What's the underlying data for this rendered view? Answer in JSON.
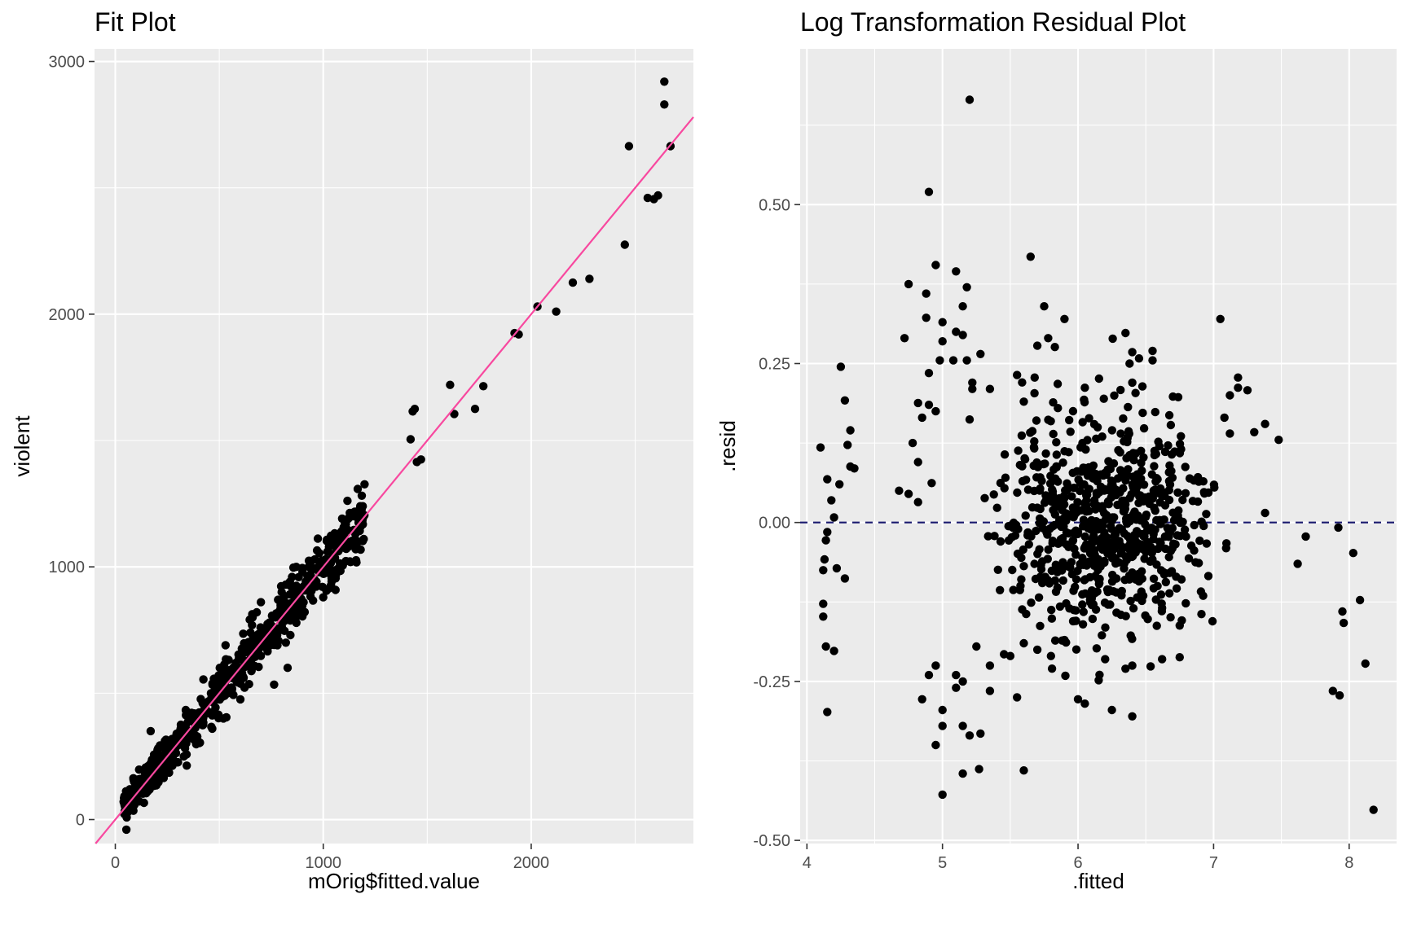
{
  "chart_data": [
    {
      "type": "scatter",
      "title": "Fit Plot",
      "xlabel": "mOrig$fitted.value",
      "ylabel": "violent",
      "xlim": [
        -100,
        2780
      ],
      "ylim": [
        -95,
        3050
      ],
      "x_ticks": [
        0,
        1000,
        2000
      ],
      "y_ticks": [
        0,
        1000,
        2000,
        3000
      ],
      "x_tick_labels": [
        "0",
        "1000",
        "2000"
      ],
      "y_tick_labels": [
        "0",
        "1000",
        "2000",
        "3000"
      ],
      "point_color": "#000000",
      "reference_line": {
        "kind": "identity",
        "slope": 1,
        "intercept": 0,
        "color": "#f8489f"
      },
      "points": [
        [
          2640,
          2920
        ],
        [
          2640,
          2830
        ],
        [
          2470,
          2665
        ],
        [
          2670,
          2665
        ],
        [
          2560,
          2460
        ],
        [
          2590,
          2455
        ],
        [
          2610,
          2470
        ],
        [
          2450,
          2275
        ],
        [
          2280,
          2140
        ],
        [
          2200,
          2125
        ],
        [
          2120,
          2010
        ],
        [
          2030,
          2030
        ],
        [
          1940,
          1920
        ],
        [
          1920,
          1925
        ],
        [
          1770,
          1715
        ],
        [
          1610,
          1720
        ],
        [
          1730,
          1625
        ],
        [
          1630,
          1605
        ],
        [
          1430,
          1615
        ],
        [
          1440,
          1625
        ],
        [
          1420,
          1505
        ],
        [
          1470,
          1425
        ],
        [
          1450,
          1415
        ],
        [
          1190,
          1240
        ],
        [
          1170,
          1175
        ],
        [
          1150,
          1210
        ],
        [
          1120,
          1190
        ],
        [
          1180,
          1160
        ],
        [
          1150,
          1145
        ],
        [
          1100,
          1100
        ],
        [
          1060,
          1080
        ],
        [
          1040,
          1120
        ],
        [
          1020,
          1060
        ],
        [
          1000,
          1010
        ],
        [
          970,
          1065
        ],
        [
          960,
          1030
        ],
        [
          930,
          1000
        ],
        [
          900,
          980
        ],
        [
          870,
          1000
        ],
        [
          850,
          960
        ],
        [
          820,
          930
        ],
        [
          800,
          900
        ],
        [
          800,
          820
        ],
        [
          770,
          800
        ],
        [
          750,
          760
        ],
        [
          820,
          700
        ],
        [
          700,
          860
        ],
        [
          680,
          820
        ],
        [
          660,
          800
        ],
        [
          650,
          740
        ],
        [
          640,
          700
        ],
        [
          620,
          660
        ],
        [
          600,
          600
        ],
        [
          580,
          620
        ],
        [
          560,
          560
        ],
        [
          540,
          520
        ],
        [
          520,
          560
        ],
        [
          530,
          690
        ],
        [
          500,
          540
        ],
        [
          480,
          480
        ],
        [
          460,
          500
        ],
        [
          440,
          420
        ],
        [
          420,
          460
        ],
        [
          400,
          380
        ],
        [
          380,
          420
        ],
        [
          360,
          400
        ],
        [
          340,
          340
        ],
        [
          320,
          360
        ],
        [
          300,
          300
        ],
        [
          280,
          320
        ],
        [
          260,
          260
        ],
        [
          240,
          280
        ],
        [
          220,
          220
        ],
        [
          200,
          240
        ],
        [
          180,
          180
        ],
        [
          170,
          350
        ],
        [
          160,
          200
        ],
        [
          140,
          140
        ],
        [
          120,
          160
        ],
        [
          100,
          100
        ],
        [
          90,
          150
        ],
        [
          80,
          80
        ],
        [
          70,
          120
        ],
        [
          60,
          60
        ],
        [
          40,
          70
        ]
      ],
      "dense_band": {
        "x_from": 40,
        "x_to": 1200,
        "slope": 0.985,
        "intercept": 10,
        "spread": 65,
        "count": 650
      }
    },
    {
      "type": "scatter",
      "title": "Log Transformation Residual Plot",
      "xlabel": ".fitted",
      "ylabel": ".resid",
      "xlim": [
        3.95,
        8.35
      ],
      "ylim": [
        -0.505,
        0.745
      ],
      "x_ticks": [
        4,
        5,
        6,
        7,
        8
      ],
      "y_ticks": [
        -0.5,
        -0.25,
        0,
        0.25,
        0.5
      ],
      "x_tick_labels": [
        "4",
        "5",
        "6",
        "7",
        "8"
      ],
      "y_tick_labels": [
        "-0.50",
        "-0.25",
        "0.00",
        "0.25",
        "0.50"
      ],
      "point_color": "#000000",
      "reference_line": {
        "kind": "horizontal",
        "y": 0,
        "style": "dashed",
        "color": "#1a1a6e"
      },
      "points": [
        [
          5.2,
          0.665
        ],
        [
          4.9,
          0.52
        ],
        [
          5.65,
          0.418
        ],
        [
          4.95,
          0.405
        ],
        [
          5.1,
          0.395
        ],
        [
          4.75,
          0.375
        ],
        [
          5.18,
          0.37
        ],
        [
          4.88,
          0.36
        ],
        [
          5.15,
          0.34
        ],
        [
          5.75,
          0.34
        ],
        [
          4.88,
          0.322
        ],
        [
          5.9,
          0.32
        ],
        [
          7.05,
          0.32
        ],
        [
          5.0,
          0.315
        ],
        [
          5.1,
          0.3
        ],
        [
          6.35,
          0.298
        ],
        [
          5.15,
          0.295
        ],
        [
          4.72,
          0.29
        ],
        [
          5.78,
          0.29
        ],
        [
          5.0,
          0.285
        ],
        [
          5.7,
          0.278
        ],
        [
          6.4,
          0.268
        ],
        [
          5.28,
          0.265
        ],
        [
          6.55,
          0.27
        ],
        [
          6.45,
          0.258
        ],
        [
          6.38,
          0.25
        ],
        [
          4.98,
          0.255
        ],
        [
          5.08,
          0.255
        ],
        [
          5.18,
          0.255
        ],
        [
          6.55,
          0.255
        ],
        [
          4.25,
          0.245
        ],
        [
          4.9,
          0.235
        ],
        [
          5.55,
          0.232
        ],
        [
          7.18,
          0.228
        ],
        [
          5.22,
          0.22
        ],
        [
          5.68,
          0.228
        ],
        [
          6.4,
          0.22
        ],
        [
          7.18,
          0.212
        ],
        [
          5.35,
          0.21
        ],
        [
          7.25,
          0.208
        ],
        [
          6.05,
          0.212
        ],
        [
          5.22,
          0.21
        ],
        [
          5.85,
          0.218
        ],
        [
          7.12,
          0.2
        ],
        [
          6.7,
          0.198
        ],
        [
          4.28,
          0.192
        ],
        [
          4.82,
          0.188
        ],
        [
          5.6,
          0.19
        ],
        [
          4.9,
          0.185
        ],
        [
          4.95,
          0.175
        ],
        [
          4.85,
          0.165
        ],
        [
          7.08,
          0.165
        ],
        [
          5.2,
          0.162
        ],
        [
          7.38,
          0.155
        ],
        [
          4.32,
          0.145
        ],
        [
          4.3,
          0.122
        ],
        [
          7.3,
          0.142
        ],
        [
          7.48,
          0.13
        ],
        [
          7.12,
          0.14
        ],
        [
          4.1,
          0.118
        ],
        [
          4.78,
          0.125
        ],
        [
          4.82,
          0.095
        ],
        [
          4.32,
          0.088
        ],
        [
          4.35,
          0.085
        ],
        [
          4.15,
          0.068
        ],
        [
          4.92,
          0.062
        ],
        [
          4.24,
          0.06
        ],
        [
          4.18,
          0.035
        ],
        [
          4.82,
          0.032
        ],
        [
          4.2,
          0.008
        ],
        [
          4.68,
          0.05
        ],
        [
          4.75,
          0.045
        ],
        [
          7.38,
          0.015
        ],
        [
          4.15,
          -0.015
        ],
        [
          4.14,
          -0.028
        ],
        [
          4.13,
          -0.058
        ],
        [
          4.12,
          -0.075
        ],
        [
          4.22,
          -0.072
        ],
        [
          4.28,
          -0.088
        ],
        [
          7.68,
          -0.022
        ],
        [
          7.62,
          -0.065
        ],
        [
          7.92,
          -0.008
        ],
        [
          8.03,
          -0.048
        ],
        [
          8.08,
          -0.122
        ],
        [
          7.95,
          -0.14
        ],
        [
          7.96,
          -0.158
        ],
        [
          8.12,
          -0.222
        ],
        [
          4.12,
          -0.128
        ],
        [
          4.12,
          -0.148
        ],
        [
          4.14,
          -0.195
        ],
        [
          4.2,
          -0.202
        ],
        [
          4.15,
          -0.298
        ],
        [
          7.88,
          -0.265
        ],
        [
          7.93,
          -0.272
        ],
        [
          8.18,
          -0.452
        ],
        [
          5.0,
          -0.428
        ],
        [
          5.15,
          -0.395
        ],
        [
          5.27,
          -0.388
        ],
        [
          5.6,
          -0.39
        ],
        [
          4.95,
          -0.35
        ],
        [
          5.2,
          -0.335
        ],
        [
          5.28,
          -0.332
        ],
        [
          5.15,
          -0.32
        ],
        [
          5.0,
          -0.32
        ],
        [
          5.0,
          -0.295
        ],
        [
          6.25,
          -0.295
        ],
        [
          6.4,
          -0.305
        ],
        [
          6.05,
          -0.285
        ],
        [
          6.0,
          -0.278
        ],
        [
          5.55,
          -0.275
        ],
        [
          4.85,
          -0.278
        ],
        [
          5.35,
          -0.265
        ],
        [
          5.1,
          -0.26
        ],
        [
          5.15,
          -0.25
        ],
        [
          5.1,
          -0.24
        ],
        [
          4.9,
          -0.24
        ],
        [
          4.95,
          -0.225
        ],
        [
          5.35,
          -0.225
        ],
        [
          6.35,
          -0.23
        ],
        [
          6.4,
          -0.225
        ],
        [
          6.62,
          -0.215
        ],
        [
          6.75,
          -0.212
        ],
        [
          5.5,
          -0.21
        ],
        [
          5.8,
          -0.21
        ],
        [
          5.7,
          -0.2
        ],
        [
          6.2,
          -0.215
        ],
        [
          5.25,
          -0.195
        ],
        [
          5.6,
          -0.19
        ],
        [
          5.9,
          -0.185
        ]
      ],
      "dense_cluster": {
        "center_x": 6.2,
        "sigma_x": 0.38,
        "center_y": 0.0,
        "sigma_y": 0.085,
        "x_from": 5.3,
        "x_to": 7.1,
        "count": 720
      }
    }
  ]
}
